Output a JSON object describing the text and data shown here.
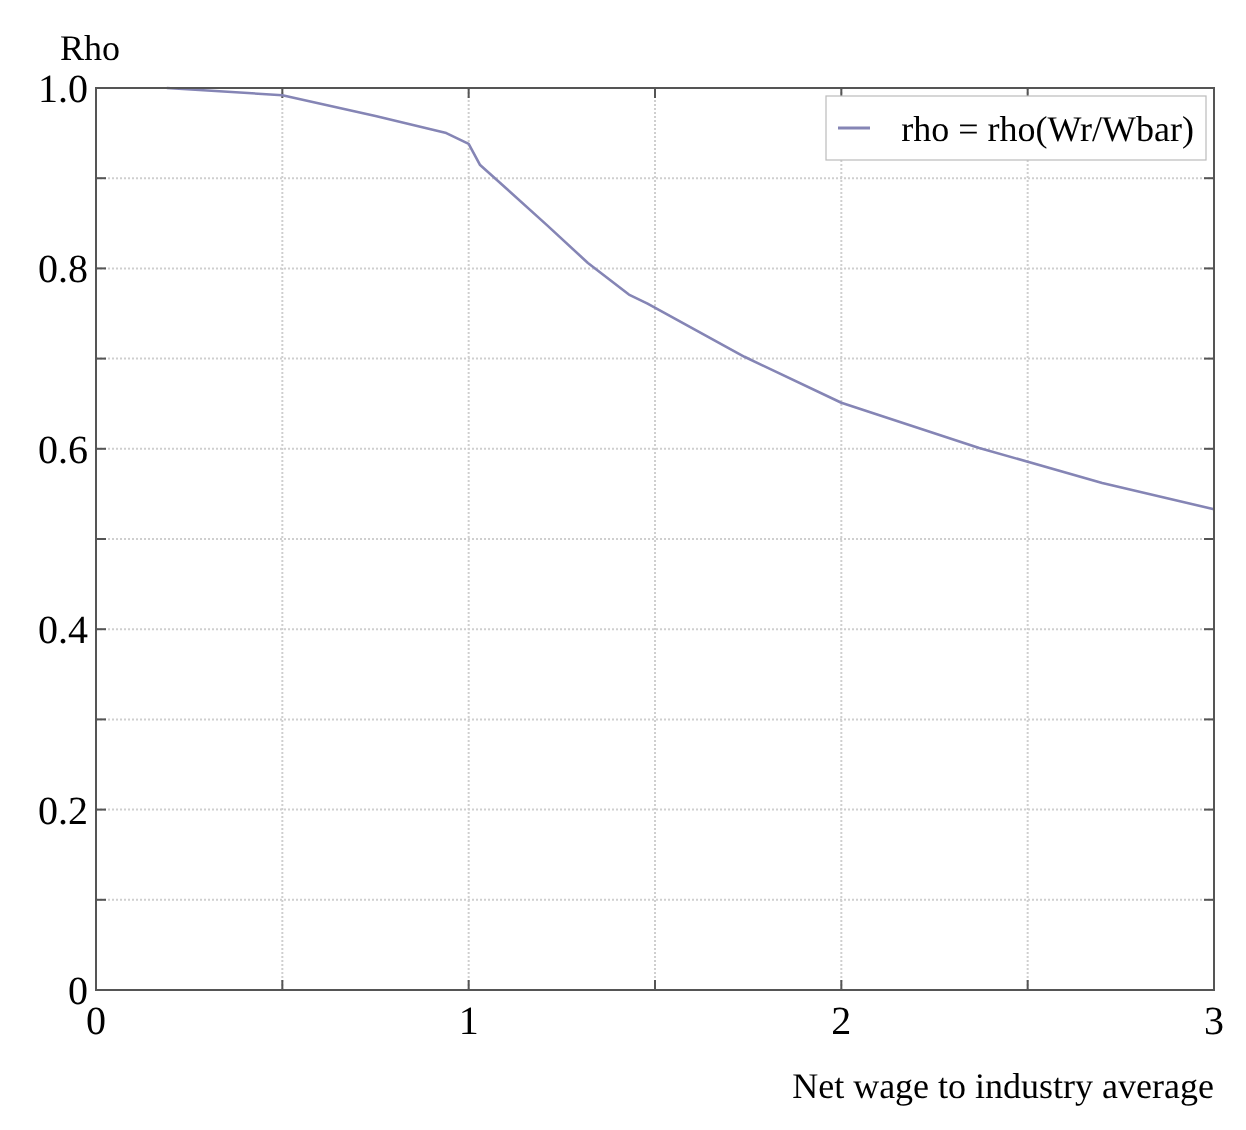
{
  "chart_data": {
    "type": "line",
    "xlabel": "Net wage to industry average",
    "ylabel": "Rho",
    "xlim": [
      0,
      3
    ],
    "ylim": [
      0,
      1
    ],
    "xticks": [
      0,
      {
        "value": 0.5,
        "label": null
      },
      1,
      {
        "value": 1.5,
        "label": null
      },
      2,
      {
        "value": 2.5,
        "label": null
      },
      3
    ],
    "yticks": [
      0,
      {
        "value": 0.1,
        "label": null
      },
      0.2,
      {
        "value": 0.3,
        "label": null
      },
      0.4,
      {
        "value": 0.5,
        "label": null
      },
      0.6,
      {
        "value": 0.7,
        "label": null
      },
      0.8,
      {
        "value": 0.9,
        "label": null
      },
      {
        "value": 1,
        "label": "1.0"
      }
    ],
    "grid": true,
    "legend": "top right",
    "marker": "none",
    "line_style": "solid",
    "series": [
      {
        "name": "rho = rho(Wr/Wbar)",
        "color": "#8585b5",
        "x": [
          0.19,
          0.5,
          0.75,
          0.94,
          1.0,
          1.03,
          1.21,
          1.32,
          1.43,
          1.48,
          1.74,
          2.0,
          2.37,
          2.7,
          3.0
        ],
        "values": [
          1.0,
          0.992,
          0.969,
          0.95,
          0.938,
          0.915,
          0.848,
          0.806,
          0.771,
          0.761,
          0.702,
          0.651,
          0.601,
          0.562,
          0.533
        ]
      }
    ]
  }
}
